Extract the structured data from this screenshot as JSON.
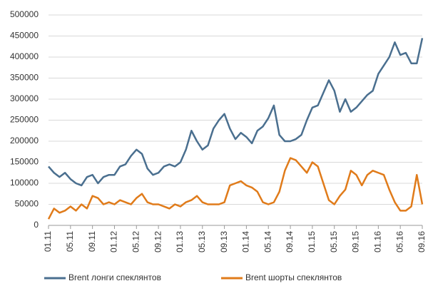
{
  "chart_data": {
    "type": "line",
    "categories": [
      "01.11",
      null,
      null,
      null,
      "05.11",
      null,
      null,
      null,
      "09.11",
      null,
      null,
      null,
      "01.12",
      null,
      null,
      null,
      "05.12",
      null,
      null,
      null,
      "09.12",
      null,
      null,
      null,
      "01.13",
      null,
      null,
      null,
      "05.13",
      null,
      null,
      null,
      "09.13",
      null,
      null,
      null,
      "01.14",
      null,
      null,
      null,
      "05.14",
      null,
      null,
      null,
      "09.14",
      null,
      null,
      null,
      "01.15",
      null,
      null,
      null,
      "05.15",
      null,
      null,
      null,
      "09.15",
      null,
      null,
      null,
      "01.16",
      null,
      null,
      null,
      "05.16",
      null,
      null,
      null,
      "09.16"
    ],
    "series": [
      {
        "name": "Brent лонги спеклянтов",
        "color": "#4a6f8f",
        "values": [
          140000,
          125000,
          115000,
          125000,
          110000,
          100000,
          95000,
          115000,
          120000,
          100000,
          115000,
          120000,
          120000,
          140000,
          145000,
          165000,
          180000,
          170000,
          135000,
          120000,
          125000,
          140000,
          145000,
          140000,
          150000,
          180000,
          225000,
          200000,
          180000,
          190000,
          230000,
          250000,
          265000,
          230000,
          205000,
          220000,
          210000,
          195000,
          225000,
          235000,
          255000,
          285000,
          215000,
          200000,
          200000,
          205000,
          215000,
          250000,
          280000,
          285000,
          315000,
          345000,
          320000,
          270000,
          300000,
          270000,
          280000,
          295000,
          310000,
          320000,
          360000,
          380000,
          400000,
          435000,
          405000,
          410000,
          385000,
          385000,
          445000
        ]
      },
      {
        "name": "Brent шорты спеклянтов",
        "color": "#e07b1a",
        "values": [
          15000,
          40000,
          30000,
          35000,
          45000,
          35000,
          50000,
          40000,
          70000,
          65000,
          50000,
          55000,
          50000,
          60000,
          55000,
          50000,
          65000,
          75000,
          55000,
          50000,
          50000,
          45000,
          40000,
          50000,
          45000,
          55000,
          60000,
          70000,
          55000,
          50000,
          50000,
          50000,
          55000,
          95000,
          100000,
          105000,
          95000,
          90000,
          80000,
          55000,
          50000,
          55000,
          80000,
          130000,
          160000,
          155000,
          140000,
          125000,
          150000,
          140000,
          100000,
          60000,
          50000,
          70000,
          85000,
          130000,
          120000,
          95000,
          120000,
          130000,
          125000,
          120000,
          85000,
          55000,
          35000,
          35000,
          45000,
          120000,
          50000
        ]
      }
    ],
    "ylim": [
      0,
      500000
    ],
    "yticks": [
      0,
      50000,
      100000,
      150000,
      200000,
      250000,
      300000,
      350000,
      400000,
      450000,
      500000
    ],
    "grid": true,
    "legend": "bottom"
  }
}
